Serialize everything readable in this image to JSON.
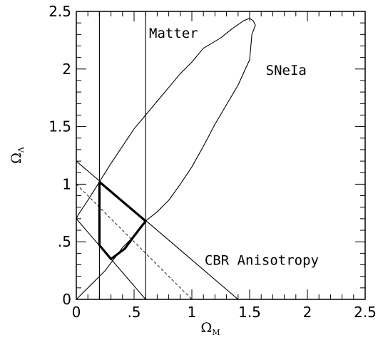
{
  "chart_data": {
    "type": "line",
    "title": "",
    "xlabel": "Ω",
    "xlabel_sub": "M",
    "ylabel": "Ω",
    "ylabel_sub": "Λ",
    "xlim": [
      0,
      2.5
    ],
    "ylim": [
      0,
      2.5
    ],
    "grid": false,
    "x_ticks": [
      {
        "value": 0,
        "label": "0"
      },
      {
        "value": 0.5,
        "label": ".5"
      },
      {
        "value": 1,
        "label": "1"
      },
      {
        "value": 1.5,
        "label": "1.5"
      },
      {
        "value": 2,
        "label": "2"
      },
      {
        "value": 2.5,
        "label": "2.5"
      }
    ],
    "y_ticks": [
      {
        "value": 0,
        "label": "0"
      },
      {
        "value": 0.5,
        "label": ".5"
      },
      {
        "value": 1,
        "label": "1"
      },
      {
        "value": 1.5,
        "label": "1.5"
      },
      {
        "value": 2,
        "label": "2"
      },
      {
        "value": 2.5,
        "label": "2.5"
      }
    ],
    "series": [
      {
        "style": "thin",
        "points": [
          [
            0,
            0
          ],
          [
            0.05,
            0.05
          ],
          [
            0.15,
            0.15
          ],
          [
            0.25,
            0.25
          ],
          [
            0.4,
            0.45
          ],
          [
            0.5,
            0.55
          ],
          [
            0.6,
            0.68
          ],
          [
            0.7,
            0.76
          ],
          [
            0.8,
            0.86
          ],
          [
            0.9,
            1.0
          ],
          [
            1.0,
            1.15
          ],
          [
            1.1,
            1.33
          ],
          [
            1.2,
            1.52
          ],
          [
            1.3,
            1.69
          ],
          [
            1.4,
            1.86
          ],
          [
            1.5,
            2.08
          ],
          [
            1.52,
            2.3
          ],
          [
            1.55,
            2.38
          ],
          [
            1.53,
            2.42
          ],
          [
            1.5,
            2.44
          ],
          [
            1.45,
            2.42
          ],
          [
            1.35,
            2.35
          ],
          [
            1.25,
            2.27
          ],
          [
            1.1,
            2.18
          ],
          [
            1.0,
            2.06
          ],
          [
            0.9,
            1.96
          ],
          [
            0.8,
            1.84
          ],
          [
            0.7,
            1.72
          ],
          [
            0.6,
            1.6
          ],
          [
            0.5,
            1.48
          ],
          [
            0.4,
            1.33
          ],
          [
            0.3,
            1.18
          ],
          [
            0.2,
            1.02
          ],
          [
            0.1,
            0.86
          ],
          [
            0.02,
            0.74
          ],
          [
            0,
            0.7
          ]
        ]
      },
      {
        "style": "thin",
        "points": [
          [
            0.2,
            0
          ],
          [
            0.2,
            2.5
          ]
        ]
      },
      {
        "style": "thin",
        "points": [
          [
            0.6,
            0
          ],
          [
            0.6,
            2.5
          ]
        ]
      },
      {
        "style": "thin",
        "points": [
          [
            0,
            1.2
          ],
          [
            1.4,
            0
          ]
        ]
      },
      {
        "style": "thin",
        "points": [
          [
            0,
            0.7
          ],
          [
            0.6,
            0
          ]
        ]
      },
      {
        "style": "dashed",
        "points": [
          [
            0,
            1.0
          ],
          [
            1.0,
            0
          ]
        ]
      },
      {
        "style": "thick",
        "points": [
          [
            0.2,
            1.02
          ],
          [
            0.6,
            0.68
          ],
          [
            0.5,
            0.55
          ],
          [
            0.42,
            0.44
          ],
          [
            0.3,
            0.35
          ],
          [
            0.2,
            0.47
          ],
          [
            0.2,
            1.02
          ]
        ]
      }
    ],
    "annotations": [
      {
        "text": "Matter",
        "x": 0.63,
        "y": 2.27
      },
      {
        "text": "SNeIa",
        "x": 1.64,
        "y": 1.95
      },
      {
        "text": "CBR Anisotropy",
        "x": 1.11,
        "y": 0.3
      }
    ]
  }
}
